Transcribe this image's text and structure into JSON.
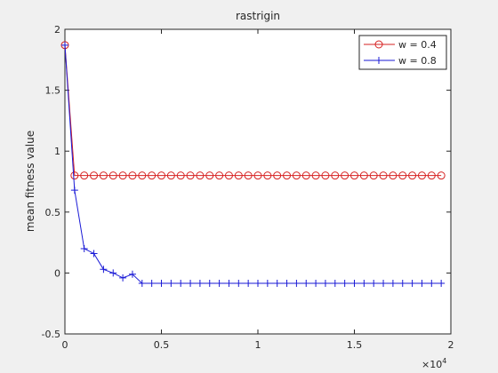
{
  "chart_data": {
    "type": "line",
    "title": "rastrigin",
    "y_label": "mean fitness value",
    "x_multiplier": {
      "base": "×10",
      "exponent": "4"
    },
    "x": [
      0,
      0.05,
      0.1,
      0.15,
      0.2,
      0.25,
      0.3,
      0.35,
      0.4,
      0.45,
      0.5,
      0.55,
      0.6,
      0.65,
      0.7,
      0.75,
      0.8,
      0.85,
      0.9,
      0.95,
      1,
      1.05,
      1.1,
      1.15,
      1.2,
      1.25,
      1.3,
      1.35,
      1.4,
      1.45,
      1.5,
      1.55,
      1.6,
      1.65,
      1.7,
      1.75,
      1.8,
      1.85,
      1.9,
      1.95
    ],
    "series": [
      {
        "name": "w = 0.4",
        "color": "#d62020",
        "marker": "circle",
        "values": [
          1.87,
          0.8,
          0.8,
          0.8,
          0.8,
          0.8,
          0.8,
          0.8,
          0.8,
          0.8,
          0.8,
          0.8,
          0.8,
          0.8,
          0.8,
          0.8,
          0.8,
          0.8,
          0.8,
          0.8,
          0.8,
          0.8,
          0.8,
          0.8,
          0.8,
          0.8,
          0.8,
          0.8,
          0.8,
          0.8,
          0.8,
          0.8,
          0.8,
          0.8,
          0.8,
          0.8,
          0.8,
          0.8,
          0.8,
          0.8
        ]
      },
      {
        "name": "w = 0.8",
        "color": "#1a1ad6",
        "marker": "plus",
        "values": [
          1.87,
          0.68,
          0.2,
          0.16,
          0.03,
          0,
          -0.04,
          -0.01,
          -0.085,
          -0.085,
          -0.085,
          -0.085,
          -0.085,
          -0.085,
          -0.085,
          -0.085,
          -0.085,
          -0.085,
          -0.085,
          -0.085,
          -0.085,
          -0.085,
          -0.085,
          -0.085,
          -0.085,
          -0.085,
          -0.085,
          -0.085,
          -0.085,
          -0.085,
          -0.085,
          -0.085,
          -0.085,
          -0.085,
          -0.085,
          -0.085,
          -0.085,
          -0.085,
          -0.085,
          -0.085
        ]
      }
    ],
    "xlim": [
      0,
      2
    ],
    "xticks": [
      0,
      0.5,
      1,
      1.5,
      2
    ],
    "ylim": [
      -0.5,
      2
    ],
    "yticks": [
      -0.5,
      0,
      0.5,
      1,
      1.5,
      2
    ],
    "grid": false,
    "legend": "northeast"
  }
}
